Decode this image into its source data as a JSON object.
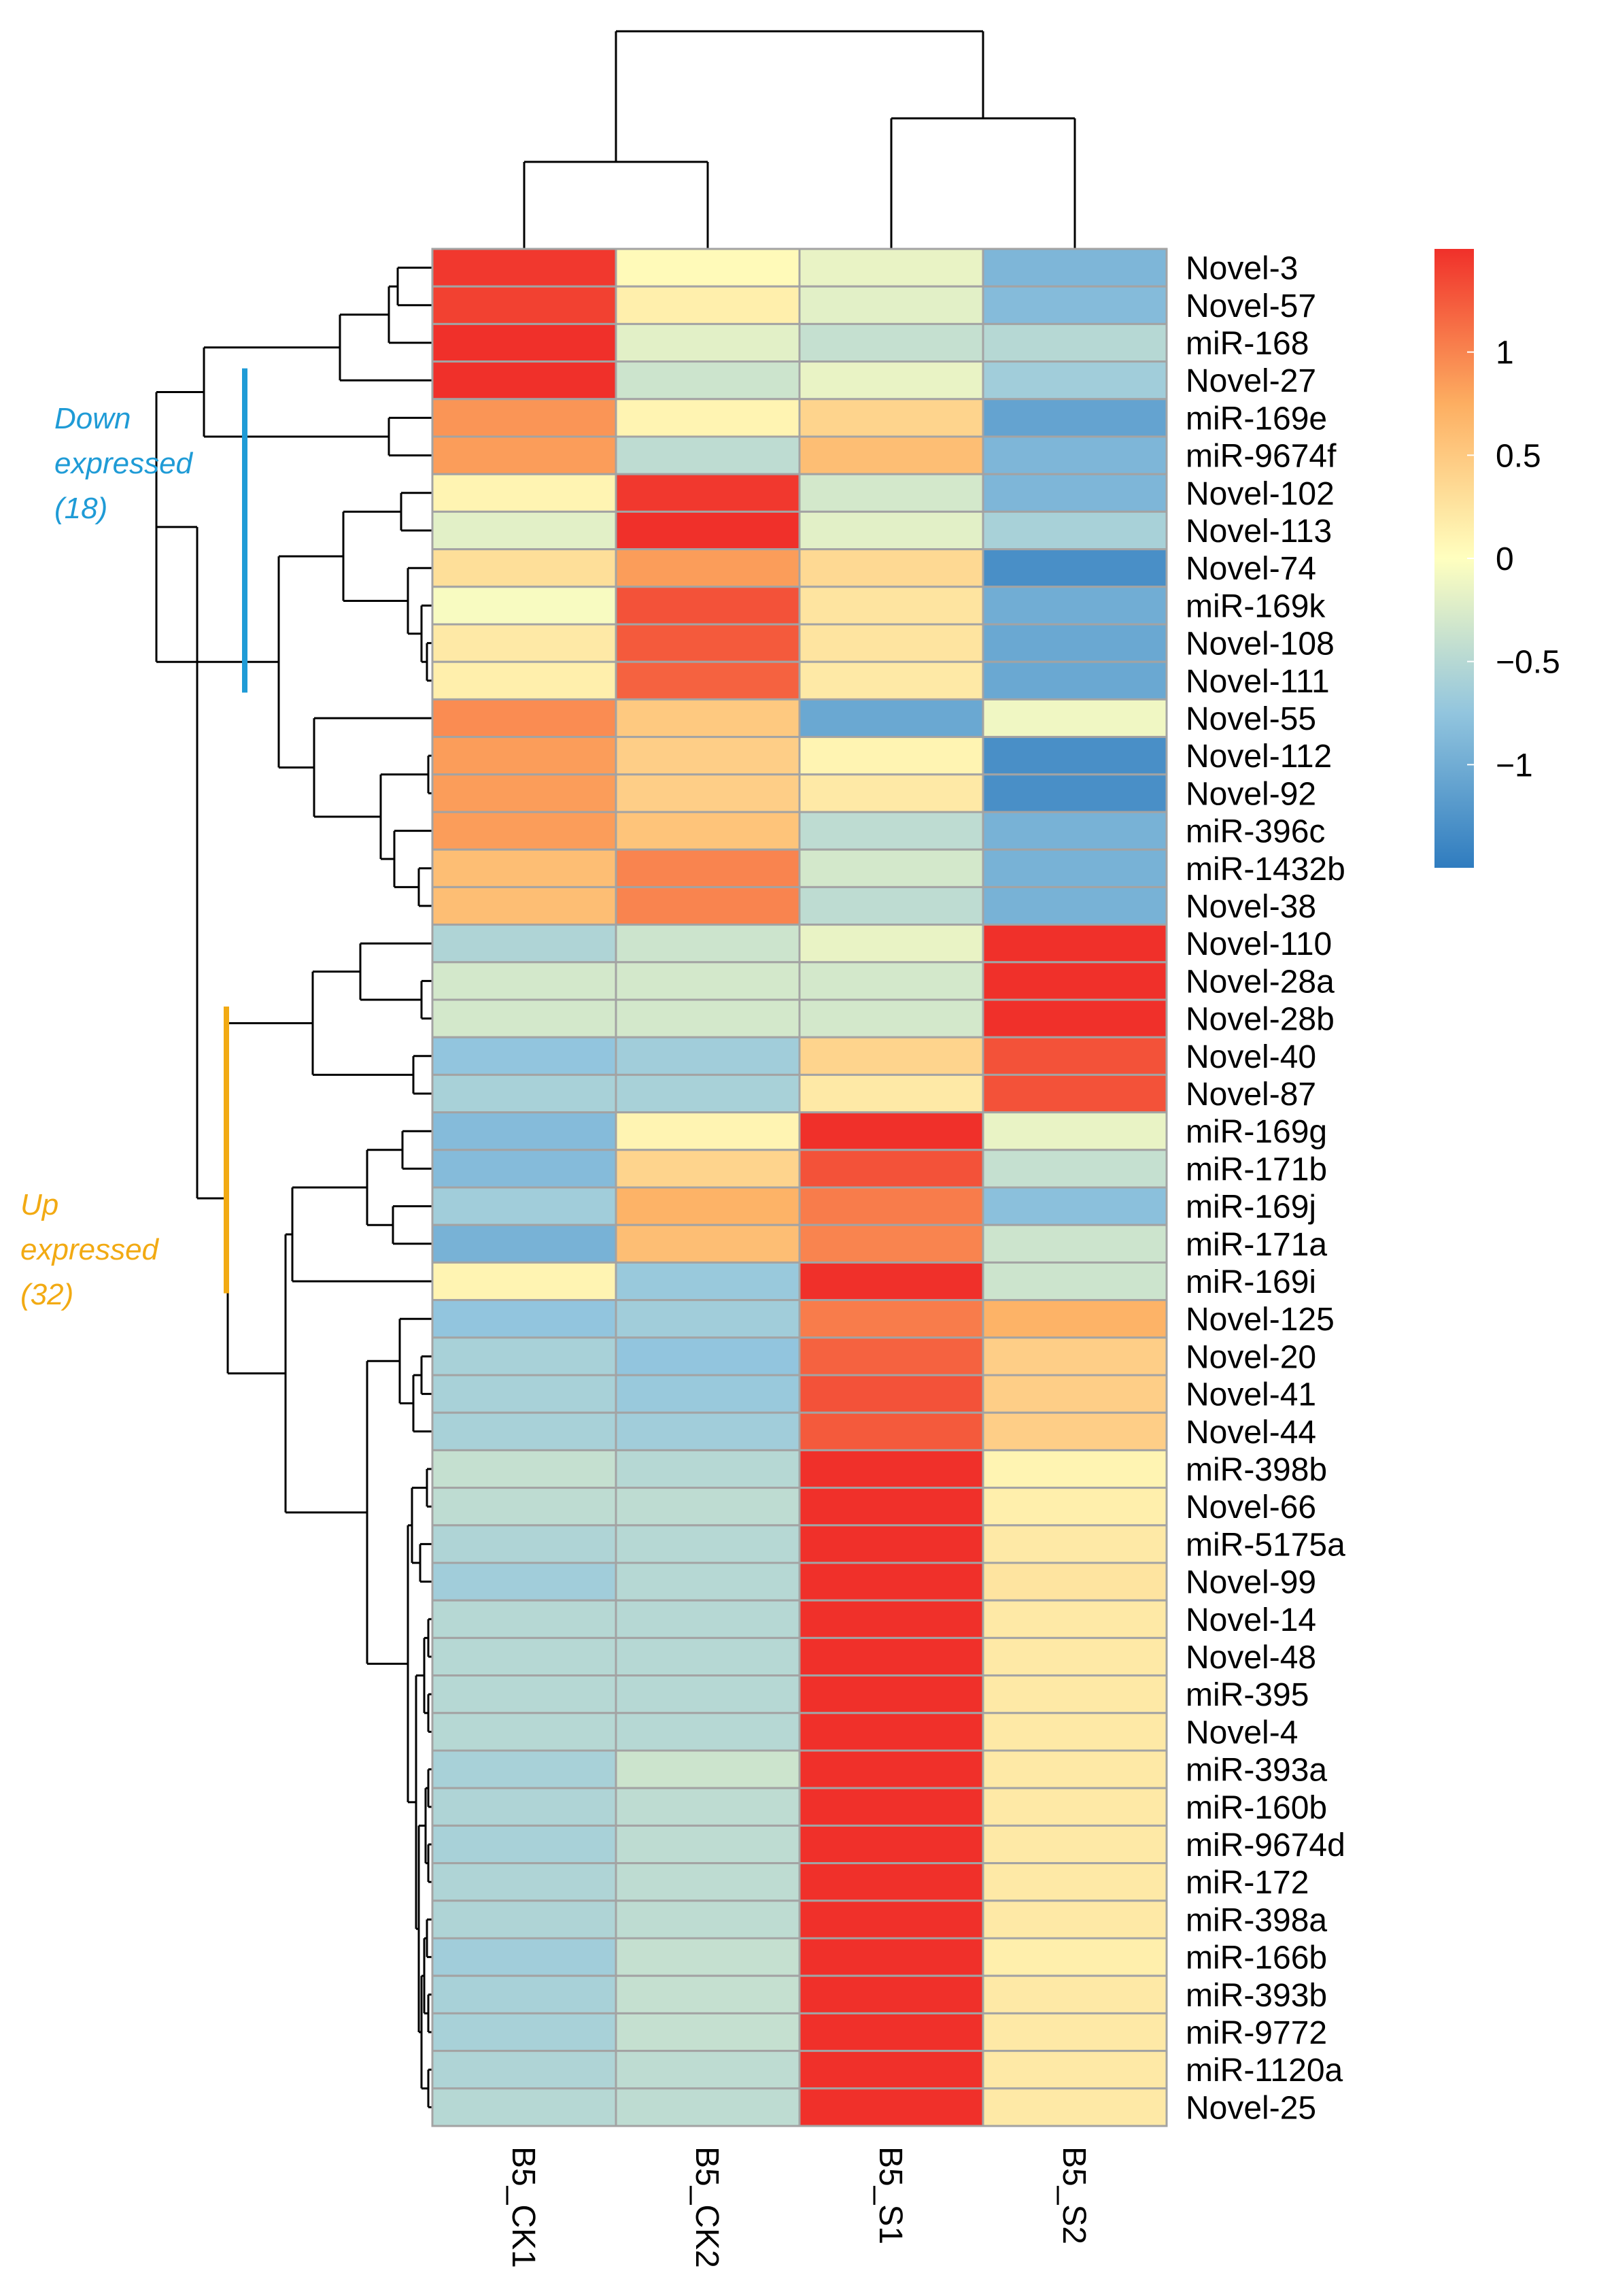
{
  "chart_data": {
    "type": "heatmap",
    "title": "",
    "columns": [
      "B5_CK1",
      "B5_CK2",
      "B5_S1",
      "B5_S2"
    ],
    "rows": [
      "Novel-3",
      "Novel-57",
      "miR-168",
      "Novel-27",
      "miR-169e",
      "miR-9674f",
      "Novel-102",
      "Novel-113",
      "Novel-74",
      "miR-169k",
      "Novel-108",
      "Novel-111",
      "Novel-55",
      "Novel-112",
      "Novel-92",
      "miR-396c",
      "miR-1432b",
      "Novel-38",
      "Novel-110",
      "Novel-28a",
      "Novel-28b",
      "Novel-40",
      "Novel-87",
      "miR-169g",
      "miR-171b",
      "miR-169j",
      "miR-171a",
      "miR-169i",
      "Novel-125",
      "Novel-20",
      "Novel-41",
      "Novel-44",
      "miR-398b",
      "Novel-66",
      "miR-5175a",
      "Novel-99",
      "Novel-14",
      "Novel-48",
      "miR-395",
      "Novel-4",
      "miR-393a",
      "miR-160b",
      "miR-9674d",
      "miR-172",
      "miR-398a",
      "miR-166b",
      "miR-393b",
      "miR-9772",
      "miR-1120a",
      "Novel-25"
    ],
    "values": [
      [
        1.45,
        0.05,
        -0.15,
        -0.9
      ],
      [
        1.4,
        0.15,
        -0.2,
        -0.85
      ],
      [
        1.5,
        -0.2,
        -0.4,
        -0.5
      ],
      [
        1.5,
        -0.35,
        -0.15,
        -0.65
      ],
      [
        0.9,
        0.1,
        0.4,
        -1.1
      ],
      [
        0.85,
        -0.45,
        0.6,
        -0.9
      ],
      [
        0.1,
        1.45,
        -0.3,
        -0.9
      ],
      [
        -0.2,
        1.5,
        -0.2,
        -0.6
      ],
      [
        0.3,
        0.85,
        0.35,
        -1.3
      ],
      [
        -0.05,
        1.3,
        0.25,
        -1.0
      ],
      [
        0.2,
        1.25,
        0.25,
        -1.05
      ],
      [
        0.15,
        1.2,
        0.2,
        -1.05
      ],
      [
        0.95,
        0.5,
        -1.05,
        -0.1
      ],
      [
        0.85,
        0.45,
        0.1,
        -1.3
      ],
      [
        0.85,
        0.45,
        0.2,
        -1.3
      ],
      [
        0.85,
        0.55,
        -0.45,
        -0.95
      ],
      [
        0.6,
        1.0,
        -0.3,
        -0.95
      ],
      [
        0.6,
        1.0,
        -0.45,
        -0.95
      ],
      [
        -0.55,
        -0.35,
        -0.15,
        1.5
      ],
      [
        -0.3,
        -0.3,
        -0.3,
        1.5
      ],
      [
        -0.3,
        -0.3,
        -0.3,
        1.5
      ],
      [
        -0.75,
        -0.65,
        0.4,
        1.3
      ],
      [
        -0.6,
        -0.6,
        0.2,
        1.3
      ],
      [
        -0.85,
        0.1,
        1.5,
        -0.15
      ],
      [
        -0.85,
        0.4,
        1.3,
        -0.4
      ],
      [
        -0.65,
        0.7,
        1.05,
        -0.8
      ],
      [
        -0.95,
        0.6,
        1.0,
        -0.35
      ],
      [
        0.1,
        -0.7,
        1.5,
        -0.35
      ],
      [
        -0.75,
        -0.65,
        1.05,
        0.7
      ],
      [
        -0.6,
        -0.75,
        1.2,
        0.45
      ],
      [
        -0.6,
        -0.7,
        1.3,
        0.45
      ],
      [
        -0.6,
        -0.65,
        1.25,
        0.45
      ],
      [
        -0.4,
        -0.5,
        1.5,
        0.1
      ],
      [
        -0.45,
        -0.45,
        1.5,
        0.15
      ],
      [
        -0.55,
        -0.5,
        1.5,
        0.2
      ],
      [
        -0.65,
        -0.5,
        1.5,
        0.25
      ],
      [
        -0.5,
        -0.5,
        1.5,
        0.2
      ],
      [
        -0.5,
        -0.5,
        1.5,
        0.2
      ],
      [
        -0.5,
        -0.5,
        1.5,
        0.2
      ],
      [
        -0.5,
        -0.5,
        1.5,
        0.2
      ],
      [
        -0.6,
        -0.35,
        1.5,
        0.2
      ],
      [
        -0.55,
        -0.45,
        1.5,
        0.2
      ],
      [
        -0.6,
        -0.45,
        1.5,
        0.2
      ],
      [
        -0.55,
        -0.45,
        1.5,
        0.2
      ],
      [
        -0.55,
        -0.45,
        1.5,
        0.2
      ],
      [
        -0.65,
        -0.4,
        1.5,
        0.15
      ],
      [
        -0.6,
        -0.4,
        1.5,
        0.2
      ],
      [
        -0.6,
        -0.4,
        1.5,
        0.2
      ],
      [
        -0.55,
        -0.45,
        1.5,
        0.2
      ],
      [
        -0.5,
        -0.45,
        1.5,
        0.2
      ]
    ],
    "color_range": [
      -1.5,
      1.5
    ],
    "colorbar_ticks": [
      1,
      0.5,
      0,
      -0.5,
      -1
    ],
    "colorbar_tick_labels": [
      "1",
      "0.5",
      "0",
      "−0.5",
      "−1"
    ],
    "colors": {
      "low": "#2f7cbf",
      "mid": "#ffffbf",
      "high": "#f0302a",
      "cell_border": "#a3a3a3",
      "dendrogram": "#000000",
      "down_group": "#1f9bd6",
      "up_group": "#f2aa13"
    },
    "groups": [
      {
        "label_lines": [
          "Down",
          "expressed",
          "(18)"
        ],
        "color": "#1f9bd6",
        "first_row": 3,
        "last_row": 11
      },
      {
        "label_lines": [
          "Up",
          "expressed",
          "(32)"
        ],
        "color": "#f2aa13",
        "first_row": 20,
        "last_row": 27
      }
    ],
    "legend_position": "right",
    "column_dendrogram": {
      "merges": [
        [
          0,
          1
        ],
        [
          2,
          3
        ],
        [
          -1,
          -2
        ]
      ],
      "heights": [
        0.4,
        0.6,
        1.0
      ]
    }
  }
}
